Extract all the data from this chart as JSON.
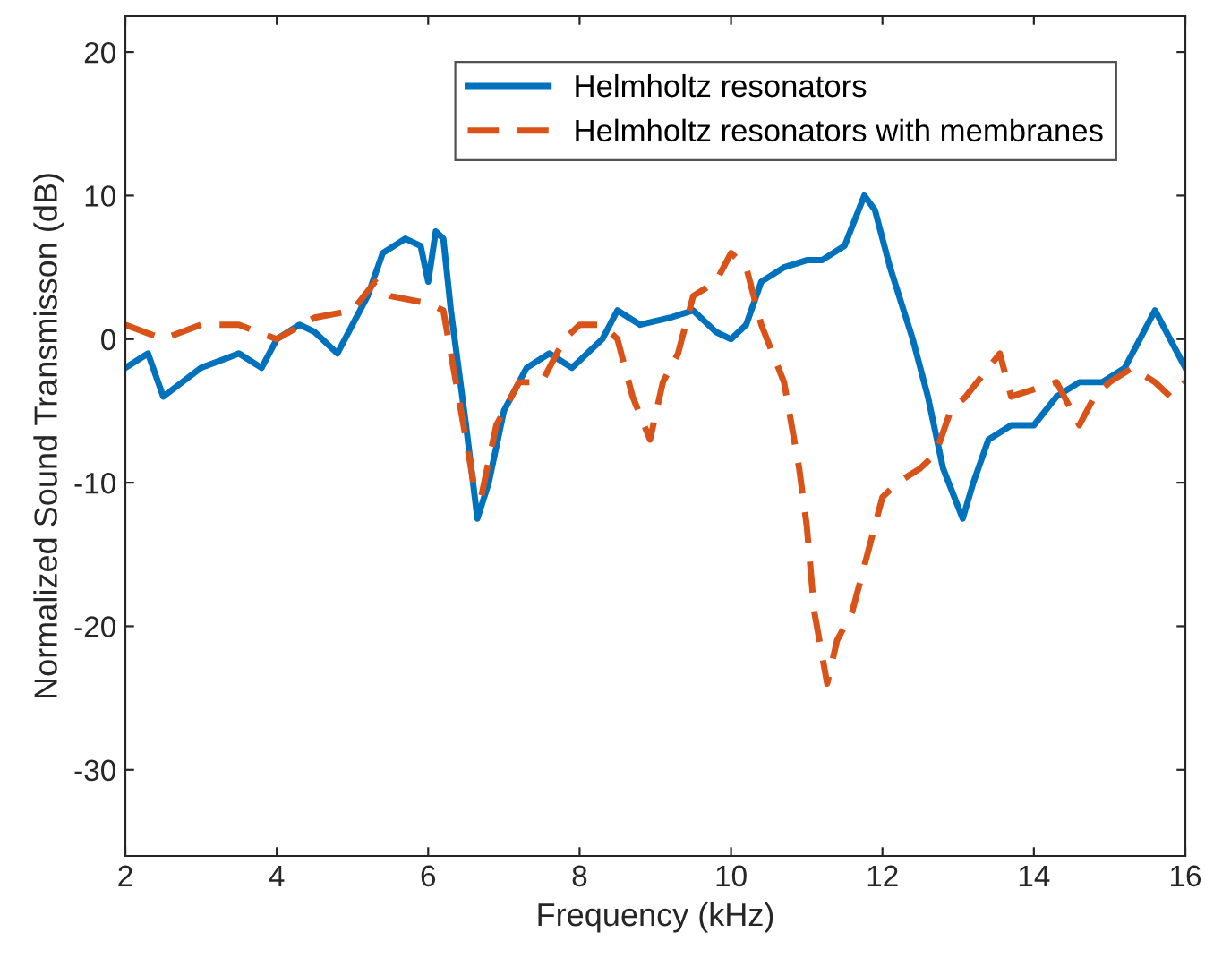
{
  "chart_data": {
    "type": "line",
    "xlabel": "Frequency (kHz)",
    "ylabel": "Normalized Sound Transmisson (dB)",
    "xlim": [
      2,
      16
    ],
    "xticks": [
      2,
      4,
      6,
      8,
      10,
      12,
      14,
      16
    ],
    "ylim": [
      -36,
      22.5
    ],
    "yticks": [
      -30,
      -20,
      -10,
      0,
      10,
      20
    ],
    "grid": false,
    "legend": "top right",
    "series": [
      {
        "name": "Helmholtz resonators",
        "color": "#0072bd",
        "line_style": "solid",
        "x": [
          2,
          2.3,
          2.5,
          3,
          3.5,
          3.8,
          4,
          4.3,
          4.5,
          4.8,
          5,
          5.2,
          5.4,
          5.7,
          5.9,
          6.0,
          6.1,
          6.2,
          6.3,
          6.5,
          6.65,
          6.8,
          7.0,
          7.3,
          7.6,
          7.9,
          8.1,
          8.3,
          8.5,
          8.8,
          9.2,
          9.5,
          9.8,
          10.0,
          10.2,
          10.4,
          10.7,
          11.0,
          11.2,
          11.5,
          11.76,
          11.9,
          12.1,
          12.4,
          12.6,
          12.8,
          13.06,
          13.2,
          13.4,
          13.7,
          14.0,
          14.3,
          14.6,
          14.9,
          15.2,
          15.5,
          15.6,
          15.8,
          15.9,
          16
        ],
        "values": [
          -2,
          -1,
          -4,
          -2,
          -1,
          -2,
          0,
          1,
          0.5,
          -1,
          1,
          3,
          6,
          7,
          6.5,
          4,
          7.5,
          7,
          2,
          -6,
          -12.5,
          -10,
          -5,
          -2,
          -1,
          -2,
          -1,
          0,
          2,
          1,
          1.5,
          2,
          0.5,
          0,
          1,
          4,
          5,
          5.5,
          5.5,
          6.5,
          10,
          9,
          5,
          0,
          -4,
          -9,
          -12.5,
          -10,
          -7,
          -6,
          -6,
          -4,
          -3,
          -3,
          -2,
          1,
          2,
          0,
          -1,
          -2
        ]
      },
      {
        "name": "Helmholtz resonators with membranes",
        "color": "#d95319",
        "line_style": "dashed",
        "x": [
          2,
          2.5,
          3,
          3.5,
          4,
          4.5,
          5,
          5.3,
          5.5,
          6.0,
          6.2,
          6.4,
          6.6,
          6.7,
          6.9,
          7.2,
          7.5,
          7.8,
          8.0,
          8.3,
          8.5,
          8.7,
          8.93,
          9.1,
          9.3,
          9.5,
          9.8,
          10.0,
          10.2,
          10.4,
          10.7,
          10.9,
          11.0,
          11.1,
          11.27,
          11.4,
          11.6,
          11.8,
          12.0,
          12.2,
          12.5,
          12.7,
          12.9,
          13.1,
          13.4,
          13.55,
          13.7,
          14.0,
          14.3,
          14.6,
          14.8,
          15.0,
          15.3,
          15.6,
          15.8,
          16
        ],
        "values": [
          1,
          0,
          1,
          1,
          0,
          1.5,
          2,
          4,
          3,
          2.5,
          2,
          -4,
          -10,
          -11,
          -6,
          -3,
          -3,
          0,
          1,
          1,
          0,
          -4,
          -7,
          -3,
          -1,
          3,
          4,
          6,
          5,
          1,
          -3,
          -9,
          -13,
          -19,
          -24,
          -21,
          -19,
          -15,
          -11,
          -10,
          -9,
          -8,
          -5,
          -4,
          -2,
          -1,
          -4,
          -3.5,
          -3,
          -6,
          -4,
          -3,
          -2,
          -3,
          -4,
          -3
        ]
      }
    ]
  }
}
